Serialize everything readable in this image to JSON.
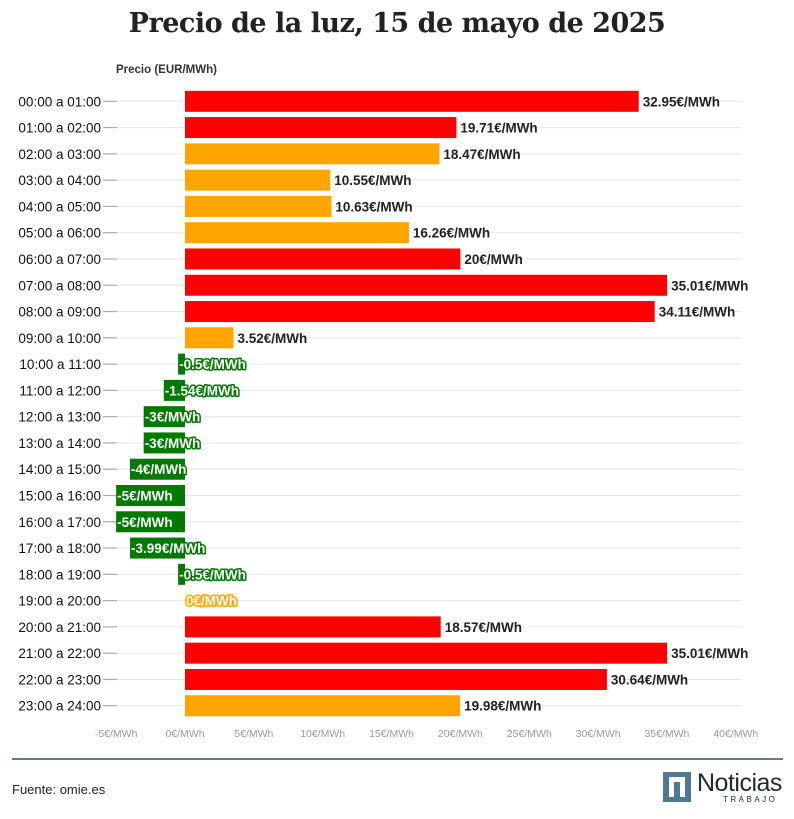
{
  "chart_data": {
    "type": "bar",
    "orientation": "horizontal",
    "title": "Precio de la luz, 15 de mayo de 2025",
    "axis_title": "Precio (EUR/MWh)",
    "categories": [
      "00:00 a 01:00",
      "01:00 a 02:00",
      "02:00 a 03:00",
      "03:00 a 04:00",
      "04:00 a 05:00",
      "05:00 a 06:00",
      "06:00 a 07:00",
      "07:00 a 08:00",
      "08:00 a 09:00",
      "09:00 a 10:00",
      "10:00 a 11:00",
      "11:00 a 12:00",
      "12:00 a 13:00",
      "13:00 a 14:00",
      "14:00 a 15:00",
      "15:00 a 16:00",
      "16:00 a 17:00",
      "17:00 a 18:00",
      "18:00 a 19:00",
      "19:00 a 20:00",
      "20:00 a 21:00",
      "21:00 a 22:00",
      "22:00 a 23:00",
      "23:00 a 24:00"
    ],
    "values": [
      32.95,
      19.71,
      18.47,
      10.55,
      10.63,
      16.26,
      20,
      35.01,
      34.11,
      3.52,
      -0.5,
      -1.54,
      -3,
      -3,
      -4,
      -5,
      -5,
      -3.99,
      -0.5,
      0,
      18.57,
      35.01,
      30.64,
      19.98
    ],
    "labels": [
      "32.95€/MWh",
      "19.71€/MWh",
      "18.47€/MWh",
      "10.55€/MWh",
      "10.63€/MWh",
      "16.26€/MWh",
      "20€/MWh",
      "35.01€/MWh",
      "34.11€/MWh",
      "3.52€/MWh",
      "-0.5€/MWh",
      "-1.54€/MWh",
      "-3€/MWh",
      "-3€/MWh",
      "-4€/MWh",
      "-5€/MWh",
      "-5€/MWh",
      "-3.99€/MWh",
      "-0.5€/MWh",
      "0€/MWh",
      "18.57€/MWh",
      "35.01€/MWh",
      "30.64€/MWh",
      "19.98€/MWh"
    ],
    "levels": [
      "high",
      "high",
      "mid",
      "mid",
      "mid",
      "mid",
      "high",
      "high",
      "high",
      "mid",
      "low",
      "low",
      "low",
      "low",
      "low",
      "low",
      "low",
      "low",
      "low",
      "mid",
      "high",
      "high",
      "high",
      "mid"
    ],
    "xlim": [
      -5,
      40
    ],
    "xticks": [
      -5,
      0,
      5,
      10,
      15,
      20,
      25,
      30,
      35,
      40
    ],
    "xtick_labels": [
      "-5€/MWh",
      "0€/MWh",
      "5€/MWh",
      "10€/MWh",
      "15€/MWh",
      "20€/MWh",
      "25€/MWh",
      "30€/MWh",
      "35€/MWh",
      "40€/MWh"
    ],
    "colors": {
      "high": "#ff0000",
      "mid": "#ffa500",
      "low": "#007a00",
      "grid": "#e6e6e6",
      "tick": "#aaaaaa"
    }
  },
  "footer": {
    "source": "Fuente: omie.es"
  },
  "logo": {
    "word": "Noticias",
    "sub": "TRABAJO"
  }
}
